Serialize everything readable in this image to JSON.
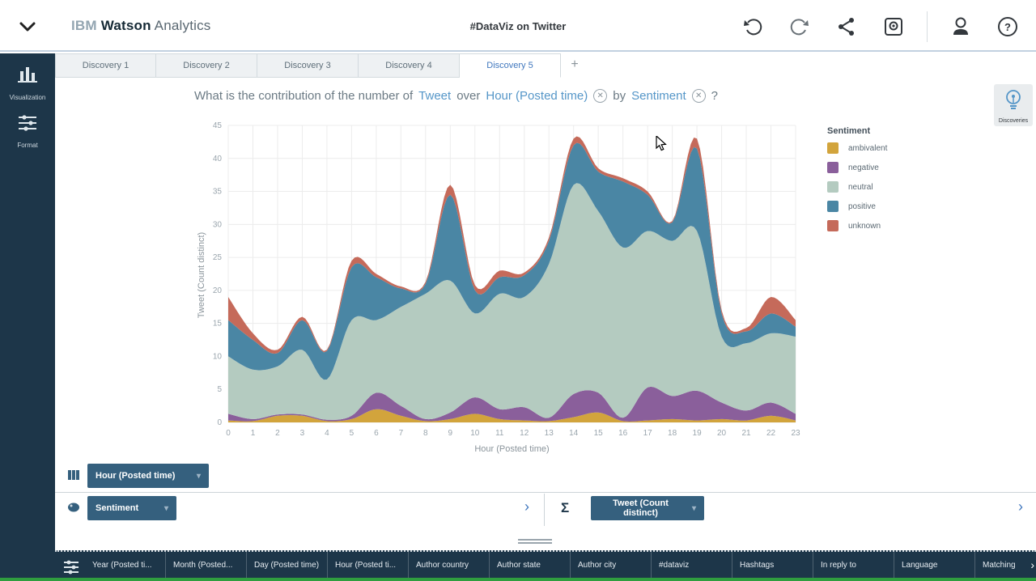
{
  "header": {
    "logo_ibm": "IBM",
    "logo_watson": "Watson",
    "logo_analytics": "Analytics",
    "title": "#DataViz on Twitter"
  },
  "sidebar": {
    "items": [
      {
        "label": "Visualization",
        "icon": "bar-chart-icon"
      },
      {
        "label": "Format",
        "icon": "sliders-icon"
      }
    ]
  },
  "tabs": [
    {
      "label": "Discovery 1",
      "active": false
    },
    {
      "label": "Discovery 2",
      "active": false
    },
    {
      "label": "Discovery 3",
      "active": false
    },
    {
      "label": "Discovery 4",
      "active": false
    },
    {
      "label": "Discovery 5",
      "active": true
    }
  ],
  "add_tab_label": "+",
  "question": {
    "part1": "What is the contribution of the number of",
    "field1": "Tweet",
    "part2": "over",
    "field2": "Hour (Posted time)",
    "part3": "by",
    "field3": "Sentiment",
    "remove_glyph": "✕",
    "suffix": "?"
  },
  "discoveries_button": {
    "label": "Discoveries"
  },
  "chart_data": {
    "type": "area",
    "stacked": true,
    "title": "What is the contribution of the number of Tweet over Hour (Posted time) by Sentiment ?",
    "xlabel": "Hour (Posted time)",
    "ylabel": "Tweet (Count distinct)",
    "x": [
      0,
      1,
      2,
      3,
      4,
      5,
      6,
      7,
      8,
      9,
      10,
      11,
      12,
      13,
      14,
      15,
      16,
      17,
      18,
      19,
      20,
      21,
      22,
      23
    ],
    "ylim": [
      0,
      45
    ],
    "yticks": [
      0,
      5,
      10,
      15,
      20,
      25,
      30,
      35,
      40,
      45
    ],
    "grid": true,
    "legend_title": "Sentiment",
    "legend_position": "right",
    "series": [
      {
        "name": "ambivalent",
        "color": "#d2a43c",
        "values": [
          0.3,
          0.2,
          1.0,
          1.0,
          0.2,
          0.5,
          2.0,
          1.0,
          0.2,
          0.5,
          1.3,
          0.5,
          0.3,
          0.2,
          0.8,
          1.5,
          0.2,
          0.3,
          0.5,
          0.3,
          0.5,
          0.3,
          1.0,
          0.3
        ]
      },
      {
        "name": "negative",
        "color": "#8a5f9b",
        "values": [
          1.0,
          0.3,
          0.2,
          0.2,
          0.2,
          0.5,
          2.5,
          1.5,
          0.3,
          1.0,
          2.5,
          1.5,
          2.0,
          0.5,
          3.5,
          3.0,
          0.5,
          5.0,
          3.5,
          4.5,
          2.5,
          1.5,
          2.0,
          1.0
        ]
      },
      {
        "name": "neutral",
        "color": "#b4cbc0",
        "values": [
          8.7,
          7.5,
          7.3,
          9.8,
          6.1,
          14.5,
          11.0,
          15.0,
          19.0,
          20.0,
          12.7,
          17.5,
          16.7,
          23.3,
          31.7,
          27.5,
          25.8,
          23.7,
          23.5,
          24.2,
          10.0,
          10.2,
          10.5,
          11.7
        ]
      },
      {
        "name": "positive",
        "color": "#4a86a4",
        "values": [
          5.5,
          4.5,
          2.0,
          4.5,
          4.3,
          8.0,
          6.5,
          2.8,
          1.5,
          13.0,
          3.5,
          2.5,
          3.3,
          3.5,
          6.0,
          6.0,
          10.0,
          5.5,
          2.8,
          12.5,
          3.5,
          1.8,
          3.0,
          1.5
        ]
      },
      {
        "name": "unknown",
        "color": "#c56a5a",
        "values": [
          3.5,
          1.0,
          0.5,
          0.5,
          0.2,
          1.0,
          0.5,
          0.3,
          0.3,
          1.5,
          0.8,
          1.0,
          0.4,
          0.5,
          1.0,
          0.5,
          0.5,
          0.5,
          0.2,
          1.5,
          0.5,
          0.5,
          2.5,
          1.0
        ]
      }
    ]
  },
  "controls": {
    "x_row": {
      "label": "Hour (Posted time)"
    },
    "color_row": {
      "label": "Sentiment"
    },
    "value_row": {
      "sigma": "Σ",
      "label": "Tweet (Count distinct)"
    }
  },
  "data_tray": {
    "columns": [
      "Year (Posted ti...",
      "Month (Posted...",
      "Day (Posted time)",
      "Hour (Posted ti...",
      "Author country",
      "Author state",
      "Author city",
      "#dataviz",
      "Hashtags",
      "In reply to",
      "Language",
      "Matching"
    ]
  },
  "colors": {
    "accent_blue": "#5596c8",
    "navy": "#1d3649",
    "button_blue": "#35607e",
    "green_bar": "#2f9e3f"
  }
}
